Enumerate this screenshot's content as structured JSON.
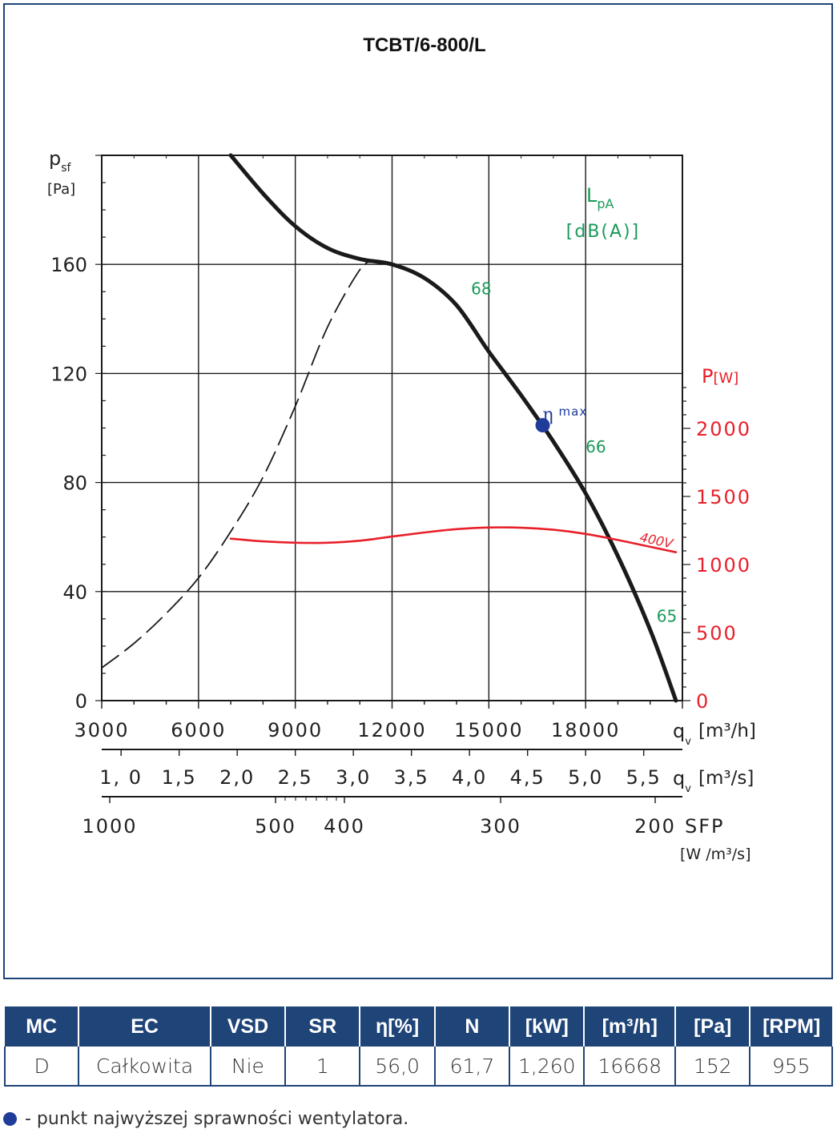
{
  "chart_data": {
    "type": "line",
    "title": "TCBT/6-800/L",
    "ylabel": "p",
    "ylabel_sub": "sf",
    "ylabel_unit": "[Pa]",
    "ylim": [
      0,
      200
    ],
    "yticks": [
      "0",
      "40",
      "80",
      "120",
      "160"
    ],
    "xlabel": "q",
    "xlabel_sub": "v",
    "xlabel_unit": "[m³/h]",
    "xlim": [
      3000,
      21000
    ],
    "xticks": [
      "3000",
      "6000",
      "9000",
      "12000",
      "15000",
      "18000"
    ],
    "x2label": "q",
    "x2label_sub": "v",
    "x2label_unit": "[m³/s]",
    "x2ticks": [
      "1, 0",
      "1,5",
      "2,0",
      "2,5",
      "3,0",
      "3,5",
      "4,0",
      "4,5",
      "5,0",
      "5,5"
    ],
    "x3label": "SFP",
    "x3label_unit": "[W /m³/s]",
    "x3ticks": [
      "1000",
      "500",
      "400",
      "300",
      "200"
    ],
    "y2label": "P",
    "y2label_unit": "[W]",
    "y2lim": [
      0,
      2400
    ],
    "y2ticks": [
      "0",
      "500",
      "1000",
      "1500",
      "2000"
    ],
    "noise_label": "L",
    "noise_label_sub": "pA",
    "noise_label_unit": "[dB(A)]",
    "noise_values": [
      {
        "label": "68",
        "x": 14450,
        "y": 149
      },
      {
        "label": "66",
        "x": 18000,
        "y": 91
      },
      {
        "label": "65",
        "x": 20200,
        "y": 29
      }
    ],
    "eta_max": {
      "label_symbol": "η",
      "label_sub": "max",
      "x": 16668,
      "y": 101
    },
    "series": [
      {
        "color": "#1a1a1a",
        "x": [
          7000,
          8000,
          9000,
          10000,
          11000,
          12000,
          13000,
          14000,
          15000,
          16000,
          17000,
          18000,
          19000,
          20000,
          20800
        ],
        "y": [
          200,
          186,
          174,
          166,
          162,
          160,
          155,
          145,
          128,
          112,
          95,
          76,
          53,
          26,
          0
        ]
      },
      {
        "name": "400V",
        "color": "#e8202a",
        "x": [
          7000,
          8000,
          9000,
          10000,
          11000,
          12000,
          13000,
          14000,
          15000,
          16000,
          17000,
          18000,
          19000,
          20000,
          20800
        ],
        "y": [
          1190,
          1170,
          1160,
          1160,
          1175,
          1205,
          1235,
          1260,
          1272,
          1270,
          1255,
          1225,
          1180,
          1130,
          1090
        ]
      },
      {
        "color": "#1a1a1a",
        "dashed": true,
        "x": [
          3000,
          4000,
          5000,
          6000,
          7000,
          8000,
          9000,
          10000,
          11000,
          11400
        ],
        "y": [
          12,
          21,
          32,
          45,
          62,
          82,
          108,
          137,
          158,
          161
        ]
      }
    ]
  },
  "table": {
    "headers": [
      "MC",
      "EC",
      "VSD",
      "SR",
      "η[%]",
      "N",
      "[kW]",
      "[m³/h]",
      "[Pa]",
      "[RPM]"
    ],
    "row": [
      "D",
      "Całkowita",
      "Nie",
      "1",
      "56,0",
      "61,7",
      "1,260",
      "16668",
      "152",
      "955"
    ]
  },
  "legend_note": "- punkt najwyższej sprawności wentylatora.",
  "colors": {
    "frame": "#1f4478",
    "power": "#e8202a",
    "noise": "#1a9a5a",
    "eta": "#1f3c9a"
  }
}
